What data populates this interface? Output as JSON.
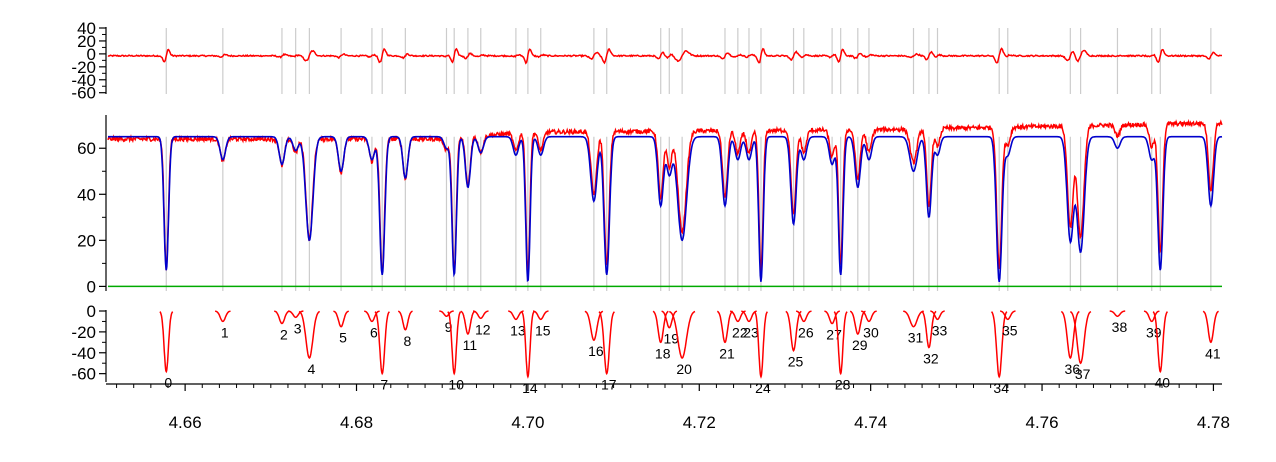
{
  "chart_data": {
    "type": "line",
    "title": "",
    "xlabel": "",
    "x_range": [
      4.651,
      4.781
    ],
    "x_ticks": [
      4.66,
      4.68,
      4.7,
      4.72,
      4.74,
      4.76,
      4.78
    ],
    "x_tick_labels": [
      "4.66",
      "4.68",
      "4.70",
      "4.72",
      "4.74",
      "4.76",
      "4.78"
    ],
    "colors": {
      "observed": "#ff0000",
      "model": "#0000cc",
      "zero": "#00aa00",
      "line_marker": "#cccccc",
      "axis": "#000000"
    },
    "panels": [
      {
        "name": "residual",
        "ylim": [
          -62,
          40
        ],
        "y_ticks": [
          40,
          20,
          0,
          -20,
          -40,
          -60
        ],
        "y_tick_labels": [
          "40",
          "20",
          "0",
          "-20",
          "-40",
          "-60"
        ],
        "series": [
          {
            "color": "#ff0000",
            "baseline": -3
          }
        ]
      },
      {
        "name": "spectrum",
        "ylim": [
          -2,
          74
        ],
        "y_ticks": [
          60,
          40,
          20,
          0
        ],
        "y_tick_labels": [
          "60",
          "40",
          "20",
          "0"
        ],
        "zero_line": 0,
        "series": [
          {
            "color": "#ff0000",
            "continuum": [
              [
                4.651,
                64
              ],
              [
                4.69,
                64
              ],
              [
                4.7,
                67
              ],
              [
                4.74,
                68
              ],
              [
                4.781,
                71
              ]
            ]
          },
          {
            "color": "#0000cc",
            "continuum": 65
          }
        ]
      },
      {
        "name": "line-profiles",
        "ylim": [
          -68,
          0
        ],
        "y_ticks": [
          0,
          -20,
          -40,
          -60
        ],
        "y_tick_labels": [
          "0",
          "-20",
          "-40",
          "-60"
        ],
        "series": [
          {
            "color": "#ff0000"
          }
        ]
      }
    ],
    "lines": [
      {
        "id": "0",
        "x": 4.6578,
        "depth": 58,
        "width": 0.00025
      },
      {
        "id": "1",
        "x": 4.6644,
        "depth": 10,
        "width": 0.0003
      },
      {
        "id": "2",
        "x": 4.6713,
        "depth": 12,
        "width": 0.0003
      },
      {
        "id": "3",
        "x": 4.6729,
        "depth": 6,
        "width": 0.0003
      },
      {
        "id": "4",
        "x": 4.6745,
        "depth": 45,
        "width": 0.0004
      },
      {
        "id": "5",
        "x": 4.6782,
        "depth": 15,
        "width": 0.0003
      },
      {
        "id": "6",
        "x": 4.6818,
        "depth": 10,
        "width": 0.0003
      },
      {
        "id": "7",
        "x": 4.683,
        "depth": 60,
        "width": 0.00028
      },
      {
        "id": "8",
        "x": 4.6857,
        "depth": 18,
        "width": 0.00028
      },
      {
        "id": "9",
        "x": 4.6905,
        "depth": 5,
        "width": 0.00028
      },
      {
        "id": "10",
        "x": 4.6914,
        "depth": 60,
        "width": 0.00025
      },
      {
        "id": "11",
        "x": 4.693,
        "depth": 22,
        "width": 0.00028
      },
      {
        "id": "12",
        "x": 4.6945,
        "depth": 7,
        "width": 0.0003
      },
      {
        "id": "13",
        "x": 4.6986,
        "depth": 8,
        "width": 0.0003
      },
      {
        "id": "14",
        "x": 4.7,
        "depth": 63,
        "width": 0.00024
      },
      {
        "id": "15",
        "x": 4.7015,
        "depth": 8,
        "width": 0.0003
      },
      {
        "id": "16",
        "x": 4.7077,
        "depth": 28,
        "width": 0.00035
      },
      {
        "id": "17",
        "x": 4.7092,
        "depth": 60,
        "width": 0.0003
      },
      {
        "id": "18",
        "x": 4.7155,
        "depth": 30,
        "width": 0.0003
      },
      {
        "id": "19",
        "x": 4.7165,
        "depth": 16,
        "width": 0.0003
      },
      {
        "id": "20",
        "x": 4.718,
        "depth": 45,
        "width": 0.0005
      },
      {
        "id": "21",
        "x": 4.723,
        "depth": 30,
        "width": 0.0003
      },
      {
        "id": "22",
        "x": 4.7245,
        "depth": 10,
        "width": 0.0003
      },
      {
        "id": "23",
        "x": 4.7258,
        "depth": 10,
        "width": 0.0003
      },
      {
        "id": "24",
        "x": 4.7272,
        "depth": 63,
        "width": 0.00025
      },
      {
        "id": "25",
        "x": 4.731,
        "depth": 38,
        "width": 0.0003
      },
      {
        "id": "26",
        "x": 4.7322,
        "depth": 10,
        "width": 0.0003
      },
      {
        "id": "27",
        "x": 4.7355,
        "depth": 12,
        "width": 0.0003
      },
      {
        "id": "28",
        "x": 4.7365,
        "depth": 60,
        "width": 0.00025
      },
      {
        "id": "29",
        "x": 4.7385,
        "depth": 22,
        "width": 0.0003
      },
      {
        "id": "30",
        "x": 4.7398,
        "depth": 10,
        "width": 0.0003
      },
      {
        "id": "31",
        "x": 4.745,
        "depth": 15,
        "width": 0.0004
      },
      {
        "id": "32",
        "x": 4.7468,
        "depth": 35,
        "width": 0.00028
      },
      {
        "id": "33",
        "x": 4.7478,
        "depth": 8,
        "width": 0.00028
      },
      {
        "id": "34",
        "x": 4.755,
        "depth": 63,
        "width": 0.0003
      },
      {
        "id": "35",
        "x": 4.756,
        "depth": 8,
        "width": 0.0003
      },
      {
        "id": "36",
        "x": 4.7633,
        "depth": 45,
        "width": 0.00035
      },
      {
        "id": "37",
        "x": 4.7645,
        "depth": 50,
        "width": 0.0004
      },
      {
        "id": "38",
        "x": 4.7688,
        "depth": 5,
        "width": 0.0003
      },
      {
        "id": "39",
        "x": 4.7728,
        "depth": 10,
        "width": 0.0003
      },
      {
        "id": "40",
        "x": 4.7738,
        "depth": 58,
        "width": 0.00028
      },
      {
        "id": "41",
        "x": 4.7797,
        "depth": 30,
        "width": 0.0003
      }
    ]
  }
}
